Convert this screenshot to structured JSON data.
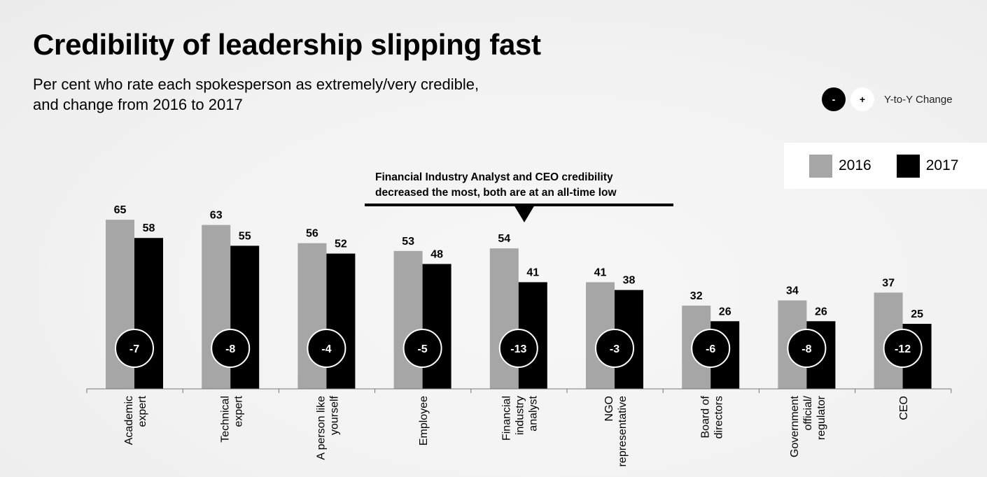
{
  "header": {
    "title": "Credibility of leadership slipping fast",
    "subtitle_line1": "Per cent who rate each spokesperson as extremely/very credible,",
    "subtitle_line2": "and change from 2016 to 2017"
  },
  "change_key": {
    "negative_symbol": "-",
    "positive_symbol": "+",
    "label": "Y-to-Y Change"
  },
  "legend": {
    "items": [
      {
        "label": "2016",
        "color": "#a6a6a6"
      },
      {
        "label": "2017",
        "color": "#000000"
      }
    ]
  },
  "annotation": {
    "line1": "Financial Industry Analyst and CEO credibility",
    "line2": "decreased the most, both are at an all-time low"
  },
  "chart_data": {
    "type": "bar",
    "title": "Credibility of leadership slipping fast",
    "categories": [
      [
        "Academic",
        "expert"
      ],
      [
        "Technical",
        "expert"
      ],
      [
        "A person like",
        "yourself"
      ],
      [
        "Employee"
      ],
      [
        "Financial",
        "industry",
        "analyst"
      ],
      [
        "NGO",
        "representative"
      ],
      [
        "Board of",
        "directors"
      ],
      [
        "Government",
        "official/",
        "regulator"
      ],
      [
        "CEO"
      ]
    ],
    "series": [
      {
        "name": "2016",
        "color": "#a6a6a6",
        "values": [
          65,
          63,
          56,
          53,
          54,
          41,
          32,
          34,
          37
        ]
      },
      {
        "name": "2017",
        "color": "#000000",
        "values": [
          58,
          55,
          52,
          48,
          41,
          38,
          26,
          26,
          25
        ]
      }
    ],
    "change": [
      "-7",
      "-8",
      "-4",
      "-5",
      "-13",
      "-3",
      "-6",
      "-8",
      "-12"
    ],
    "ylim": [
      0,
      65
    ],
    "grid": false,
    "legend_position": "top-right"
  }
}
